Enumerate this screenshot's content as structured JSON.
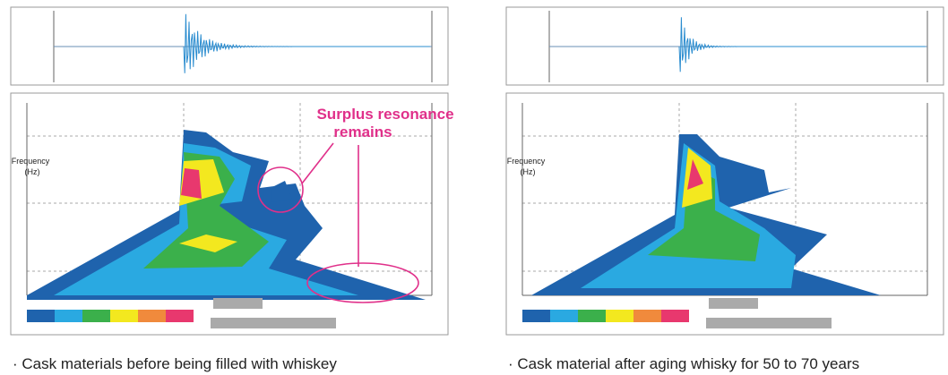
{
  "annotation": [
    "Surplus resonance",
    "remains"
  ],
  "panels": [
    {
      "y_label": [
        "Frequency",
        "(Hz)"
      ],
      "caption": "· Cask materials before being filled with whiskey"
    },
    {
      "y_label": [
        "Frequency",
        "(Hz)"
      ],
      "caption": "· Cask material after aging whisky for 50 to 70 years"
    }
  ]
}
